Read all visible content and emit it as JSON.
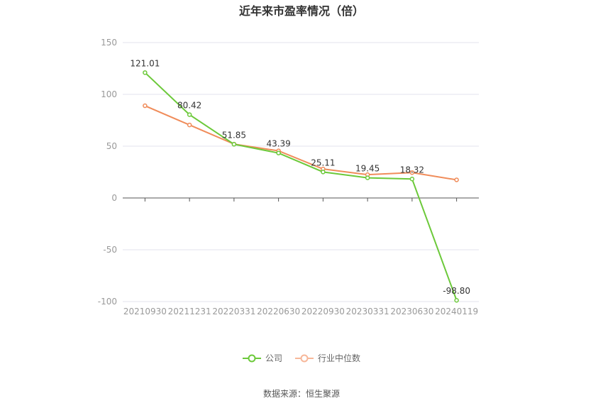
{
  "chart_data": {
    "type": "line",
    "title": "近年来市盈率情况（倍）",
    "categories": [
      "20210930",
      "20211231",
      "20220331",
      "20220630",
      "20220930",
      "20230331",
      "20230630",
      "20240119"
    ],
    "ylim": [
      -100,
      150
    ],
    "yticks": [
      150,
      100,
      50,
      0,
      -50,
      -100
    ],
    "grid": true,
    "legend_position": "bottom",
    "series": [
      {
        "name": "公司",
        "color": "#6cc93a",
        "values": [
          121.01,
          80.42,
          51.85,
          43.39,
          25.11,
          19.45,
          18.32,
          -98.8
        ],
        "labels": [
          "121.01",
          "80.42",
          "51.85",
          "43.39",
          "25.11",
          "19.45",
          "18.32",
          "-98.80"
        ]
      },
      {
        "name": "行业中位数",
        "color": "#f08c5a",
        "values": [
          89.0,
          70.5,
          52.0,
          45.5,
          28.0,
          22.5,
          24.5,
          17.5
        ]
      }
    ]
  },
  "source_text": "数据来源：恒生聚源"
}
